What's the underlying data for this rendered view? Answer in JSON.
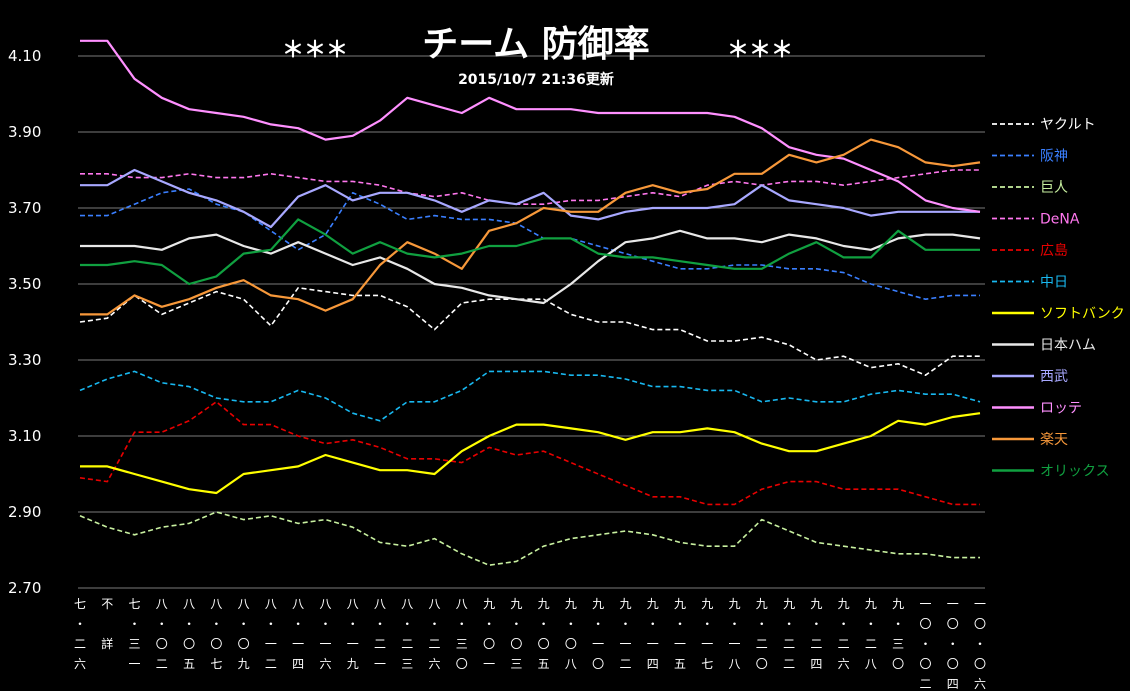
{
  "chart_data": {
    "type": "line",
    "title": "チーム 防御率",
    "stars_left": "＊＊＊",
    "stars_right": "＊＊＊",
    "subtitle": "2015/10/7 21:36更新",
    "ylim": [
      2.7,
      4.2
    ],
    "yticks": [
      "2.70",
      "2.90",
      "3.10",
      "3.30",
      "3.50",
      "3.70",
      "3.90",
      "4.10"
    ],
    "grid": true,
    "legend_position": "right",
    "x_labels": [
      {
        "at": 0,
        "chars": [
          "七",
          "・",
          "二",
          "六"
        ]
      },
      {
        "at": 1,
        "chars": [
          "不",
          "",
          "詳",
          ""
        ]
      },
      {
        "at": 2,
        "chars": [
          "七",
          "・",
          "三",
          "一"
        ]
      },
      {
        "at": 3,
        "chars": [
          "八",
          "・",
          "〇",
          "二"
        ]
      },
      {
        "at": 4,
        "chars": [
          "八",
          "・",
          "〇",
          "五"
        ]
      },
      {
        "at": 5,
        "chars": [
          "八",
          "・",
          "〇",
          "七"
        ]
      },
      {
        "at": 6,
        "chars": [
          "八",
          "・",
          "〇",
          "九"
        ]
      },
      {
        "at": 7,
        "chars": [
          "八",
          "・",
          "一",
          "二"
        ]
      },
      {
        "at": 8,
        "chars": [
          "八",
          "・",
          "一",
          "四"
        ]
      },
      {
        "at": 9,
        "chars": [
          "八",
          "・",
          "一",
          "六"
        ]
      },
      {
        "at": 10,
        "chars": [
          "八",
          "・",
          "一",
          "九"
        ]
      },
      {
        "at": 11,
        "chars": [
          "八",
          "・",
          "二",
          "一"
        ]
      },
      {
        "at": 12,
        "chars": [
          "八",
          "・",
          "二",
          "三"
        ]
      },
      {
        "at": 13,
        "chars": [
          "八",
          "・",
          "二",
          "六"
        ]
      },
      {
        "at": 14,
        "chars": [
          "八",
          "・",
          "三",
          "〇"
        ]
      },
      {
        "at": 15,
        "chars": [
          "九",
          "・",
          "〇",
          "一"
        ]
      },
      {
        "at": 16,
        "chars": [
          "九",
          "・",
          "〇",
          "三"
        ]
      },
      {
        "at": 17,
        "chars": [
          "九",
          "・",
          "〇",
          "五"
        ]
      },
      {
        "at": 18,
        "chars": [
          "九",
          "・",
          "〇",
          "八"
        ]
      },
      {
        "at": 19,
        "chars": [
          "九",
          "・",
          "一",
          "〇"
        ]
      },
      {
        "at": 20,
        "chars": [
          "九",
          "・",
          "一",
          "二"
        ]
      },
      {
        "at": 21,
        "chars": [
          "九",
          "・",
          "一",
          "四"
        ]
      },
      {
        "at": 22,
        "chars": [
          "九",
          "・",
          "一",
          "五"
        ]
      },
      {
        "at": 23,
        "chars": [
          "九",
          "・",
          "一",
          "七"
        ]
      },
      {
        "at": 24,
        "chars": [
          "九",
          "・",
          "一",
          "八"
        ]
      },
      {
        "at": 25,
        "chars": [
          "九",
          "・",
          "二",
          "〇"
        ]
      },
      {
        "at": 26,
        "chars": [
          "九",
          "・",
          "二",
          "二"
        ]
      },
      {
        "at": 27,
        "chars": [
          "九",
          "・",
          "二",
          "四"
        ]
      },
      {
        "at": 28,
        "chars": [
          "九",
          "・",
          "二",
          "六"
        ]
      },
      {
        "at": 29,
        "chars": [
          "九",
          "・",
          "二",
          "八"
        ]
      },
      {
        "at": 30,
        "chars": [
          "九",
          "・",
          "三",
          "〇"
        ]
      },
      {
        "at": 31,
        "chars": [
          "一",
          "〇",
          "・",
          "〇",
          "二"
        ]
      },
      {
        "at": 32,
        "chars": [
          "一",
          "〇",
          "・",
          "〇",
          "四"
        ]
      },
      {
        "at": 33,
        "chars": [
          "一",
          "〇",
          "・",
          "〇",
          "六"
        ]
      }
    ],
    "series": [
      {
        "name": "ヤクルト",
        "color": "#ffffff",
        "dashed": true,
        "values": [
          3.4,
          3.41,
          3.47,
          3.42,
          3.45,
          3.48,
          3.46,
          3.39,
          3.49,
          3.48,
          3.47,
          3.47,
          3.44,
          3.38,
          3.45,
          3.46,
          3.46,
          3.46,
          3.42,
          3.4,
          3.4,
          3.38,
          3.38,
          3.35,
          3.35,
          3.36,
          3.34,
          3.3,
          3.31,
          3.28,
          3.29,
          3.26,
          3.31,
          3.31
        ]
      },
      {
        "name": "阪神",
        "color": "#3a7fff",
        "dashed": true,
        "values": [
          3.68,
          3.68,
          3.71,
          3.74,
          3.75,
          3.71,
          3.69,
          3.64,
          3.59,
          3.63,
          3.74,
          3.71,
          3.67,
          3.68,
          3.67,
          3.67,
          3.66,
          3.62,
          3.62,
          3.6,
          3.58,
          3.56,
          3.54,
          3.54,
          3.55,
          3.55,
          3.54,
          3.54,
          3.53,
          3.5,
          3.48,
          3.46,
          3.47,
          3.47
        ]
      },
      {
        "name": "巨人",
        "color": "#c8f0a0",
        "dashed": true,
        "values": [
          2.89,
          2.86,
          2.84,
          2.86,
          2.87,
          2.9,
          2.88,
          2.89,
          2.87,
          2.88,
          2.86,
          2.82,
          2.81,
          2.83,
          2.79,
          2.76,
          2.77,
          2.81,
          2.83,
          2.84,
          2.85,
          2.84,
          2.82,
          2.81,
          2.81,
          2.88,
          2.85,
          2.82,
          2.81,
          2.8,
          2.79,
          2.79,
          2.78,
          2.78
        ]
      },
      {
        "name": "DeNA",
        "color": "#ff77ee",
        "dashed": true,
        "values": [
          3.79,
          3.79,
          3.78,
          3.78,
          3.79,
          3.78,
          3.78,
          3.79,
          3.78,
          3.77,
          3.77,
          3.76,
          3.74,
          3.73,
          3.74,
          3.72,
          3.71,
          3.71,
          3.72,
          3.72,
          3.73,
          3.74,
          3.73,
          3.76,
          3.77,
          3.76,
          3.77,
          3.77,
          3.76,
          3.77,
          3.78,
          3.79,
          3.8,
          3.8
        ]
      },
      {
        "name": "広島",
        "color": "#e80000",
        "dashed": true,
        "values": [
          2.99,
          2.98,
          3.11,
          3.11,
          3.14,
          3.19,
          3.13,
          3.13,
          3.1,
          3.08,
          3.09,
          3.07,
          3.04,
          3.04,
          3.03,
          3.07,
          3.05,
          3.06,
          3.03,
          3.0,
          2.97,
          2.94,
          2.94,
          2.92,
          2.92,
          2.96,
          2.98,
          2.98,
          2.96,
          2.96,
          2.96,
          2.94,
          2.92,
          2.92
        ]
      },
      {
        "name": "中日",
        "color": "#18b8f0",
        "dashed": true,
        "values": [
          3.22,
          3.25,
          3.27,
          3.24,
          3.23,
          3.2,
          3.19,
          3.19,
          3.22,
          3.2,
          3.16,
          3.14,
          3.19,
          3.19,
          3.22,
          3.27,
          3.27,
          3.27,
          3.26,
          3.26,
          3.25,
          3.23,
          3.23,
          3.22,
          3.22,
          3.19,
          3.2,
          3.19,
          3.19,
          3.21,
          3.22,
          3.21,
          3.21,
          3.19
        ]
      },
      {
        "name": "ソフトバンク",
        "color": "#ffff00",
        "dashed": false,
        "values": [
          3.02,
          3.02,
          3.0,
          2.98,
          2.96,
          2.95,
          3.0,
          3.01,
          3.02,
          3.05,
          3.03,
          3.01,
          3.01,
          3.0,
          3.06,
          3.1,
          3.13,
          3.13,
          3.12,
          3.11,
          3.09,
          3.11,
          3.11,
          3.12,
          3.11,
          3.08,
          3.06,
          3.06,
          3.08,
          3.1,
          3.14,
          3.13,
          3.15,
          3.16
        ]
      },
      {
        "name": "日本ハム",
        "color": "#e8e8e8",
        "dashed": false,
        "values": [
          3.6,
          3.6,
          3.6,
          3.59,
          3.62,
          3.63,
          3.6,
          3.58,
          3.61,
          3.58,
          3.55,
          3.57,
          3.54,
          3.5,
          3.49,
          3.47,
          3.46,
          3.45,
          3.5,
          3.56,
          3.61,
          3.62,
          3.64,
          3.62,
          3.62,
          3.61,
          3.63,
          3.62,
          3.6,
          3.59,
          3.62,
          3.63,
          3.63,
          3.62
        ]
      },
      {
        "name": "西武",
        "color": "#a8a8ff",
        "dashed": false,
        "values": [
          3.76,
          3.76,
          3.8,
          3.77,
          3.74,
          3.72,
          3.69,
          3.65,
          3.73,
          3.76,
          3.72,
          3.74,
          3.74,
          3.72,
          3.69,
          3.72,
          3.71,
          3.74,
          3.68,
          3.67,
          3.69,
          3.7,
          3.7,
          3.7,
          3.71,
          3.76,
          3.72,
          3.71,
          3.7,
          3.68,
          3.69,
          3.69,
          3.69,
          3.69
        ]
      },
      {
        "name": "ロッテ",
        "color": "#ff90ff",
        "dashed": false,
        "values": [
          4.14,
          4.14,
          4.04,
          3.99,
          3.96,
          3.95,
          3.94,
          3.92,
          3.91,
          3.88,
          3.89,
          3.93,
          3.99,
          3.97,
          3.95,
          3.99,
          3.96,
          3.96,
          3.96,
          3.95,
          3.95,
          3.95,
          3.95,
          3.95,
          3.94,
          3.91,
          3.86,
          3.84,
          3.83,
          3.8,
          3.77,
          3.72,
          3.7,
          3.69
        ]
      },
      {
        "name": "楽天",
        "color": "#f7983a",
        "dashed": false,
        "values": [
          3.42,
          3.42,
          3.47,
          3.44,
          3.46,
          3.49,
          3.51,
          3.47,
          3.46,
          3.43,
          3.46,
          3.55,
          3.61,
          3.58,
          3.54,
          3.64,
          3.66,
          3.7,
          3.69,
          3.69,
          3.74,
          3.76,
          3.74,
          3.75,
          3.79,
          3.79,
          3.84,
          3.82,
          3.84,
          3.88,
          3.86,
          3.82,
          3.81,
          3.82
        ]
      },
      {
        "name": "オリックス",
        "color": "#10a040",
        "dashed": false,
        "values": [
          3.55,
          3.55,
          3.56,
          3.55,
          3.5,
          3.52,
          3.58,
          3.59,
          3.67,
          3.63,
          3.58,
          3.61,
          3.58,
          3.57,
          3.58,
          3.6,
          3.6,
          3.62,
          3.62,
          3.58,
          3.57,
          3.57,
          3.56,
          3.55,
          3.54,
          3.54,
          3.58,
          3.61,
          3.57,
          3.57,
          3.64,
          3.59,
          3.59,
          3.59
        ]
      }
    ]
  }
}
